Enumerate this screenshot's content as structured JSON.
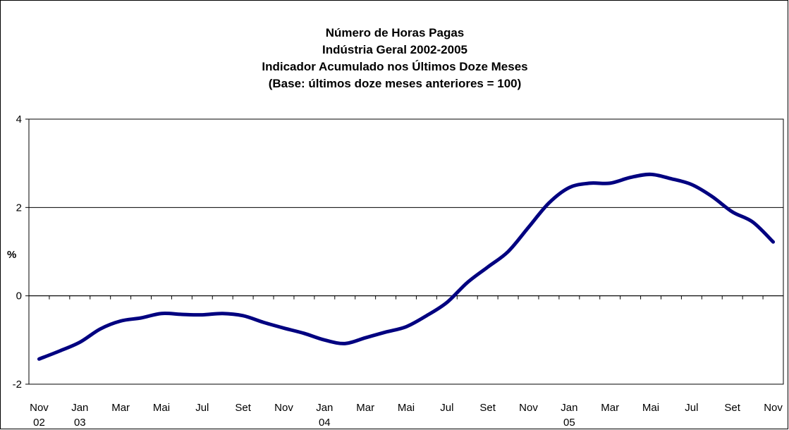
{
  "chart_data": {
    "type": "line",
    "title": [
      "Número de Horas Pagas",
      "Indústria Geral 2002-2005",
      "Indicador Acumulado nos Últimos Doze Meses",
      "(Base: últimos doze meses anteriores = 100)"
    ],
    "ylabel": "%",
    "categories": [
      "Nov\n02",
      null,
      "Jan\n03",
      null,
      "Mar",
      null,
      "Mai",
      null,
      "Jul",
      null,
      "Set",
      null,
      "Nov",
      null,
      "Jan\n04",
      null,
      "Mar",
      null,
      "Mai",
      null,
      "Jul",
      null,
      "Set",
      null,
      "Nov",
      null,
      "Jan\n05",
      null,
      "Mar",
      null,
      "Mai",
      null,
      "Jul",
      null,
      "Set",
      null,
      "Nov"
    ],
    "series": [
      {
        "color": "#000080",
        "values": [
          -1.43,
          -1.25,
          -1.05,
          -0.75,
          -0.57,
          -0.5,
          -0.4,
          -0.42,
          -0.43,
          -0.4,
          -0.45,
          -0.6,
          -0.73,
          -0.85,
          -1.0,
          -1.08,
          -0.95,
          -0.82,
          -0.7,
          -0.45,
          -0.15,
          0.3,
          0.65,
          1.0,
          1.55,
          2.1,
          2.45,
          2.55,
          2.55,
          2.68,
          2.75,
          2.65,
          2.52,
          2.25,
          1.9,
          1.67,
          1.22
        ]
      }
    ],
    "ylim": [
      -2,
      4
    ],
    "yticks": [
      -2,
      0,
      2,
      4
    ],
    "grid": true
  }
}
